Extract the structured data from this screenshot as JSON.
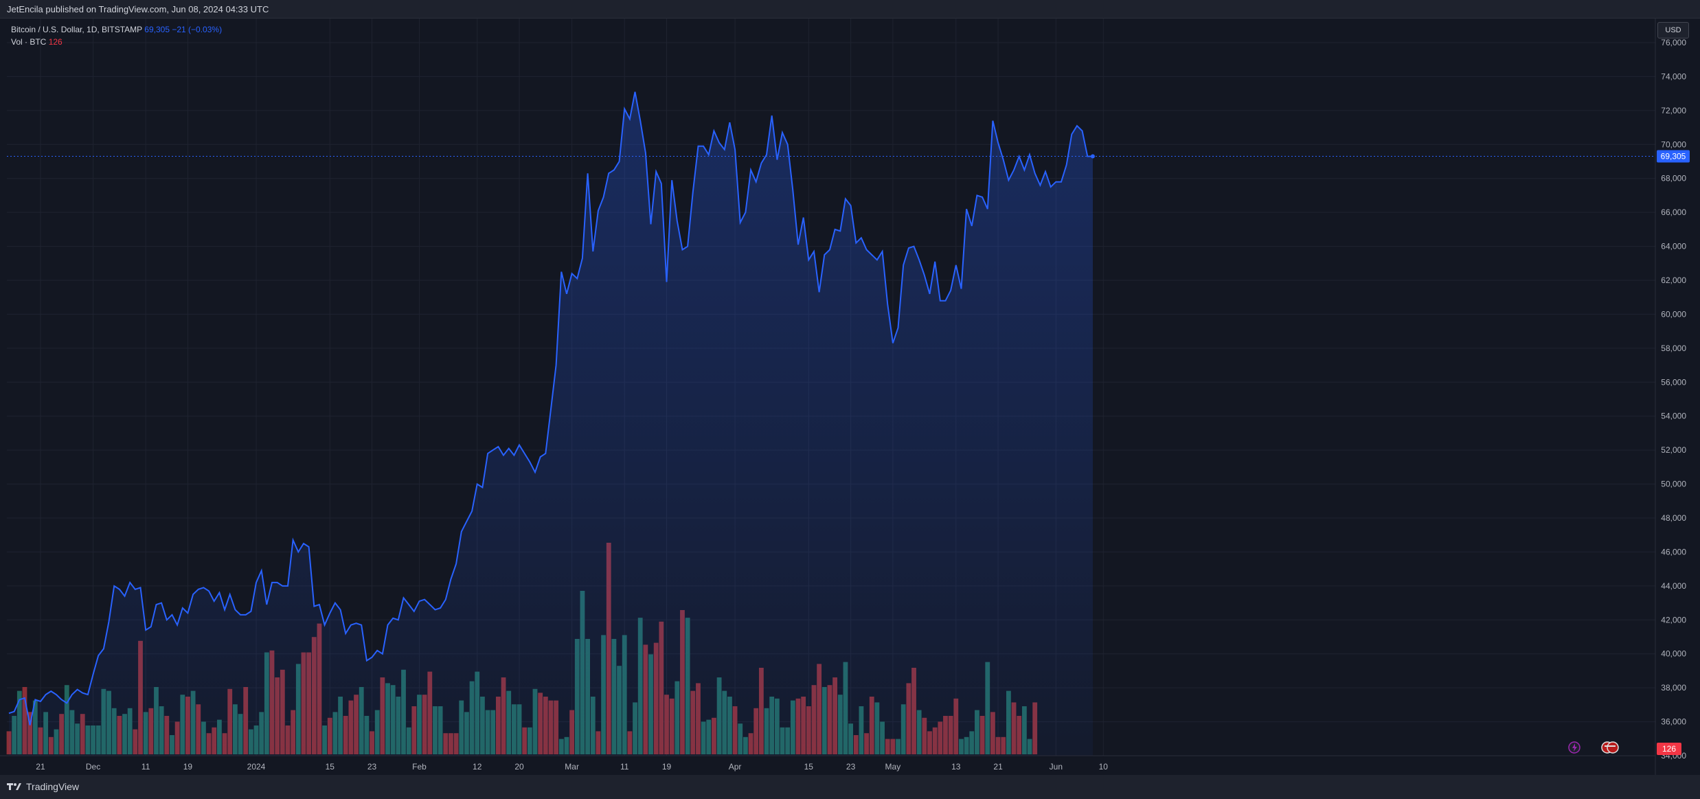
{
  "header": {
    "published": "JetEncila published on TradingView.com, Jun 08, 2024 04:33 UTC"
  },
  "legend": {
    "symbol": "Bitcoin / U.S. Dollar, 1D, BITSTAMP",
    "last": "69,305",
    "change": "−21 (−0.03%)",
    "vol_label": "Vol · BTC",
    "vol_value": "126"
  },
  "scale": {
    "currency": "USD"
  },
  "footer": {
    "brand": "TradingView"
  },
  "colors": {
    "line": "#2962ff",
    "area_top": "#1e2e6e",
    "vol_up": "#22675f",
    "vol_down": "#8c3038",
    "grid": "#1f2330",
    "price_tag": "#2962ff",
    "vol_tag": "#f23645"
  },
  "chart_data": {
    "type": "area",
    "x_start": "2023-11-15",
    "x_end": "2024-06-07",
    "ylim": [
      35000,
      76000
    ],
    "last_price": 69305,
    "last_price_label": "69,305",
    "vol_last_label": "126",
    "ylabel_bottom": "34,000",
    "yticks": [
      {
        "value": 36000,
        "label": "36,000"
      },
      {
        "value": 38000,
        "label": "38,000"
      },
      {
        "value": 40000,
        "label": "40,000"
      },
      {
        "value": 42000,
        "label": "42,000"
      },
      {
        "value": 44000,
        "label": "44,000"
      },
      {
        "value": 46000,
        "label": "46,000"
      },
      {
        "value": 48000,
        "label": "48,000"
      },
      {
        "value": 50000,
        "label": "50,000"
      },
      {
        "value": 52000,
        "label": "52,000"
      },
      {
        "value": 54000,
        "label": "54,000"
      },
      {
        "value": 56000,
        "label": "56,000"
      },
      {
        "value": 58000,
        "label": "58,000"
      },
      {
        "value": 60000,
        "label": "60,000"
      },
      {
        "value": 62000,
        "label": "62,000"
      },
      {
        "value": 64000,
        "label": "64,000"
      },
      {
        "value": 66000,
        "label": "66,000"
      },
      {
        "value": 68000,
        "label": "68,000"
      },
      {
        "value": 70000,
        "label": "70,000"
      },
      {
        "value": 72000,
        "label": "72,000"
      },
      {
        "value": 74000,
        "label": "74,000"
      },
      {
        "value": 76000,
        "label": "76,000"
      }
    ],
    "xticks": [
      {
        "date": "2023-11-21",
        "label": "21"
      },
      {
        "date": "2023-12-01",
        "label": "Dec"
      },
      {
        "date": "2023-12-11",
        "label": "11"
      },
      {
        "date": "2023-12-19",
        "label": "19"
      },
      {
        "date": "2024-01-01",
        "label": "2024"
      },
      {
        "date": "2024-01-15",
        "label": "15"
      },
      {
        "date": "2024-01-23",
        "label": "23"
      },
      {
        "date": "2024-02-01",
        "label": "Feb"
      },
      {
        "date": "2024-02-12",
        "label": "12"
      },
      {
        "date": "2024-02-20",
        "label": "20"
      },
      {
        "date": "2024-03-01",
        "label": "Mar"
      },
      {
        "date": "2024-03-11",
        "label": "11"
      },
      {
        "date": "2024-03-19",
        "label": "19"
      },
      {
        "date": "2024-04-01",
        "label": "Apr"
      },
      {
        "date": "2024-04-15",
        "label": "15"
      },
      {
        "date": "2024-04-23",
        "label": "23"
      },
      {
        "date": "2024-05-01",
        "label": "May"
      },
      {
        "date": "2024-05-13",
        "label": "13"
      },
      {
        "date": "2024-05-21",
        "label": "21"
      },
      {
        "date": "2024-06-01",
        "label": "Jun"
      },
      {
        "date": "2024-06-10",
        "label": "10"
      }
    ],
    "price": [
      36500,
      36600,
      37300,
      37400,
      35800,
      37300,
      37200,
      37600,
      37800,
      37600,
      37300,
      37100,
      37600,
      37900,
      37700,
      37600,
      38800,
      39900,
      40300,
      41900,
      44000,
      43800,
      43400,
      44200,
      43800,
      43900,
      41400,
      41600,
      42900,
      43000,
      42000,
      42300,
      41700,
      42700,
      42400,
      43500,
      43800,
      43900,
      43700,
      43100,
      43600,
      42600,
      43500,
      42600,
      42300,
      42300,
      42500,
      44200,
      44900,
      42900,
      44200,
      44200,
      44000,
      44000,
      46700,
      46000,
      46500,
      46300,
      42800,
      42900,
      41700,
      42400,
      43000,
      42600,
      41200,
      41700,
      41800,
      41700,
      39600,
      39800,
      40200,
      40000,
      41700,
      42100,
      42000,
      43300,
      42900,
      42500,
      43100,
      43200,
      42900,
      42600,
      42700,
      43200,
      44400,
      45300,
      47200,
      47800,
      48400,
      50000,
      49800,
      51800,
      52000,
      52200,
      51700,
      52100,
      51700,
      52300,
      51800,
      51300,
      50700,
      51600,
      51800,
      54400,
      57000,
      62500,
      61200,
      62400,
      62100,
      63300,
      68300,
      63700,
      66100,
      66900,
      68300,
      68500,
      69000,
      72100,
      71500,
      73100,
      71400,
      69500,
      65300,
      68400,
      67700,
      61900,
      67900,
      65500,
      63800,
      64000,
      67200,
      69900,
      69900,
      69400,
      70800,
      70100,
      69700,
      71300,
      69700,
      65400,
      66000,
      68500,
      67800,
      68900,
      69400,
      71700,
      69100,
      70700,
      70000,
      67300,
      64100,
      65700,
      63200,
      63700,
      61300,
      63500,
      63800,
      65000,
      64900,
      66800,
      66400,
      64200,
      64500,
      63800,
      63500,
      63200,
      63700,
      60600,
      58300,
      59200,
      62900,
      63900,
      64000,
      63200,
      62300,
      61200,
      63100,
      60800,
      60800,
      61400,
      62900,
      61500,
      66200,
      65200,
      67000,
      66900,
      66200,
      71400,
      70100,
      69100,
      67900,
      68500,
      69300,
      68500,
      69400,
      68300,
      67600,
      68400,
      67500,
      67800,
      67800,
      68800,
      70600,
      71100,
      70800,
      69300,
      69305
    ],
    "volume": [
      {
        "v": 0.12,
        "up": false
      },
      {
        "v": 0.2,
        "up": true
      },
      {
        "v": 0.33,
        "up": true
      },
      {
        "v": 0.35,
        "up": false
      },
      {
        "v": 0.22,
        "up": false
      },
      {
        "v": 0.28,
        "up": true
      },
      {
        "v": 0.14,
        "up": false
      },
      {
        "v": 0.22,
        "up": true
      },
      {
        "v": 0.09,
        "up": false
      },
      {
        "v": 0.13,
        "up": true
      },
      {
        "v": 0.21,
        "up": false
      },
      {
        "v": 0.36,
        "up": true
      },
      {
        "v": 0.23,
        "up": true
      },
      {
        "v": 0.16,
        "up": true
      },
      {
        "v": 0.21,
        "up": false
      },
      {
        "v": 0.15,
        "up": true
      },
      {
        "v": 0.15,
        "up": true
      },
      {
        "v": 0.15,
        "up": true
      },
      {
        "v": 0.34,
        "up": true
      },
      {
        "v": 0.33,
        "up": true
      },
      {
        "v": 0.24,
        "up": true
      },
      {
        "v": 0.2,
        "up": false
      },
      {
        "v": 0.21,
        "up": true
      },
      {
        "v": 0.24,
        "up": true
      },
      {
        "v": 0.13,
        "up": false
      },
      {
        "v": 0.59,
        "up": false
      },
      {
        "v": 0.22,
        "up": true
      },
      {
        "v": 0.24,
        "up": false
      },
      {
        "v": 0.35,
        "up": true
      },
      {
        "v": 0.25,
        "up": true
      },
      {
        "v": 0.2,
        "up": false
      },
      {
        "v": 0.1,
        "up": true
      },
      {
        "v": 0.17,
        "up": false
      },
      {
        "v": 0.31,
        "up": true
      },
      {
        "v": 0.3,
        "up": false
      },
      {
        "v": 0.33,
        "up": true
      },
      {
        "v": 0.26,
        "up": false
      },
      {
        "v": 0.17,
        "up": true
      },
      {
        "v": 0.11,
        "up": false
      },
      {
        "v": 0.14,
        "up": false
      },
      {
        "v": 0.18,
        "up": true
      },
      {
        "v": 0.11,
        "up": false
      },
      {
        "v": 0.34,
        "up": false
      },
      {
        "v": 0.26,
        "up": true
      },
      {
        "v": 0.21,
        "up": true
      },
      {
        "v": 0.35,
        "up": false
      },
      {
        "v": 0.13,
        "up": true
      },
      {
        "v": 0.15,
        "up": true
      },
      {
        "v": 0.22,
        "up": true
      },
      {
        "v": 0.53,
        "up": true
      },
      {
        "v": 0.54,
        "up": false
      },
      {
        "v": 0.4,
        "up": false
      },
      {
        "v": 0.44,
        "up": false
      },
      {
        "v": 0.15,
        "up": false
      },
      {
        "v": 0.23,
        "up": false
      },
      {
        "v": 0.47,
        "up": true
      },
      {
        "v": 0.53,
        "up": false
      },
      {
        "v": 0.53,
        "up": false
      },
      {
        "v": 0.61,
        "up": false
      },
      {
        "v": 0.68,
        "up": false
      },
      {
        "v": 0.15,
        "up": true
      },
      {
        "v": 0.19,
        "up": false
      },
      {
        "v": 0.22,
        "up": true
      },
      {
        "v": 0.3,
        "up": true
      },
      {
        "v": 0.2,
        "up": false
      },
      {
        "v": 0.28,
        "up": false
      },
      {
        "v": 0.31,
        "up": false
      },
      {
        "v": 0.35,
        "up": true
      },
      {
        "v": 0.2,
        "up": true
      },
      {
        "v": 0.12,
        "up": false
      },
      {
        "v": 0.23,
        "up": true
      },
      {
        "v": 0.4,
        "up": false
      },
      {
        "v": 0.37,
        "up": true
      },
      {
        "v": 0.36,
        "up": true
      },
      {
        "v": 0.3,
        "up": true
      },
      {
        "v": 0.44,
        "up": true
      },
      {
        "v": 0.14,
        "up": true
      },
      {
        "v": 0.25,
        "up": false
      },
      {
        "v": 0.31,
        "up": true
      },
      {
        "v": 0.31,
        "up": false
      },
      {
        "v": 0.43,
        "up": false
      },
      {
        "v": 0.25,
        "up": true
      },
      {
        "v": 0.25,
        "up": true
      },
      {
        "v": 0.11,
        "up": false
      },
      {
        "v": 0.11,
        "up": false
      },
      {
        "v": 0.11,
        "up": false
      },
      {
        "v": 0.28,
        "up": true
      },
      {
        "v": 0.22,
        "up": true
      },
      {
        "v": 0.38,
        "up": true
      },
      {
        "v": 0.43,
        "up": true
      },
      {
        "v": 0.3,
        "up": true
      },
      {
        "v": 0.23,
        "up": true
      },
      {
        "v": 0.23,
        "up": true
      },
      {
        "v": 0.3,
        "up": false
      },
      {
        "v": 0.4,
        "up": false
      },
      {
        "v": 0.33,
        "up": true
      },
      {
        "v": 0.26,
        "up": true
      },
      {
        "v": 0.26,
        "up": true
      },
      {
        "v": 0.14,
        "up": false
      },
      {
        "v": 0.14,
        "up": true
      },
      {
        "v": 0.34,
        "up": true
      },
      {
        "v": 0.32,
        "up": false
      },
      {
        "v": 0.3,
        "up": false
      },
      {
        "v": 0.28,
        "up": false
      },
      {
        "v": 0.28,
        "up": false
      },
      {
        "v": 0.08,
        "up": true
      },
      {
        "v": 0.09,
        "up": true
      },
      {
        "v": 0.23,
        "up": false
      },
      {
        "v": 0.6,
        "up": true
      },
      {
        "v": 0.85,
        "up": true
      },
      {
        "v": 0.6,
        "up": true
      },
      {
        "v": 0.3,
        "up": true
      },
      {
        "v": 0.12,
        "up": false
      },
      {
        "v": 0.62,
        "up": true
      },
      {
        "v": 1.1,
        "up": false
      },
      {
        "v": 0.6,
        "up": true
      },
      {
        "v": 0.46,
        "up": true
      },
      {
        "v": 0.62,
        "up": true
      },
      {
        "v": 0.12,
        "up": false
      },
      {
        "v": 0.27,
        "up": true
      },
      {
        "v": 0.71,
        "up": true
      },
      {
        "v": 0.57,
        "up": false
      },
      {
        "v": 0.52,
        "up": true
      },
      {
        "v": 0.58,
        "up": false
      },
      {
        "v": 0.69,
        "up": false
      },
      {
        "v": 0.31,
        "up": false
      },
      {
        "v": 0.29,
        "up": false
      },
      {
        "v": 0.38,
        "up": true
      },
      {
        "v": 0.75,
        "up": false
      },
      {
        "v": 0.71,
        "up": true
      },
      {
        "v": 0.33,
        "up": false
      },
      {
        "v": 0.37,
        "up": false
      },
      {
        "v": 0.17,
        "up": true
      },
      {
        "v": 0.18,
        "up": true
      },
      {
        "v": 0.19,
        "up": false
      },
      {
        "v": 0.4,
        "up": true
      },
      {
        "v": 0.33,
        "up": true
      },
      {
        "v": 0.3,
        "up": true
      },
      {
        "v": 0.25,
        "up": false
      },
      {
        "v": 0.16,
        "up": true
      },
      {
        "v": 0.09,
        "up": true
      },
      {
        "v": 0.11,
        "up": false
      },
      {
        "v": 0.24,
        "up": false
      },
      {
        "v": 0.45,
        "up": false
      },
      {
        "v": 0.24,
        "up": true
      },
      {
        "v": 0.3,
        "up": true
      },
      {
        "v": 0.29,
        "up": true
      },
      {
        "v": 0.14,
        "up": true
      },
      {
        "v": 0.14,
        "up": true
      },
      {
        "v": 0.28,
        "up": true
      },
      {
        "v": 0.29,
        "up": false
      },
      {
        "v": 0.3,
        "up": false
      },
      {
        "v": 0.25,
        "up": false
      },
      {
        "v": 0.36,
        "up": false
      },
      {
        "v": 0.47,
        "up": false
      },
      {
        "v": 0.35,
        "up": true
      },
      {
        "v": 0.36,
        "up": false
      },
      {
        "v": 0.4,
        "up": false
      },
      {
        "v": 0.31,
        "up": true
      },
      {
        "v": 0.48,
        "up": true
      },
      {
        "v": 0.16,
        "up": true
      },
      {
        "v": 0.1,
        "up": false
      },
      {
        "v": 0.25,
        "up": true
      },
      {
        "v": 0.11,
        "up": false
      },
      {
        "v": 0.3,
        "up": false
      },
      {
        "v": 0.27,
        "up": true
      },
      {
        "v": 0.17,
        "up": true
      },
      {
        "v": 0.08,
        "up": false
      },
      {
        "v": 0.08,
        "up": false
      },
      {
        "v": 0.08,
        "up": true
      },
      {
        "v": 0.26,
        "up": true
      },
      {
        "v": 0.37,
        "up": false
      },
      {
        "v": 0.45,
        "up": false
      },
      {
        "v": 0.23,
        "up": true
      },
      {
        "v": 0.19,
        "up": false
      },
      {
        "v": 0.12,
        "up": false
      },
      {
        "v": 0.14,
        "up": false
      },
      {
        "v": 0.17,
        "up": false
      },
      {
        "v": 0.2,
        "up": false
      },
      {
        "v": 0.2,
        "up": false
      },
      {
        "v": 0.29,
        "up": false
      },
      {
        "v": 0.08,
        "up": true
      },
      {
        "v": 0.09,
        "up": true
      },
      {
        "v": 0.12,
        "up": true
      },
      {
        "v": 0.23,
        "up": true
      },
      {
        "v": 0.2,
        "up": false
      },
      {
        "v": 0.48,
        "up": true
      },
      {
        "v": 0.22,
        "up": false
      },
      {
        "v": 0.09,
        "up": false
      },
      {
        "v": 0.09,
        "up": false
      },
      {
        "v": 0.33,
        "up": true
      },
      {
        "v": 0.27,
        "up": false
      },
      {
        "v": 0.2,
        "up": false
      },
      {
        "v": 0.25,
        "up": true
      },
      {
        "v": 0.08,
        "up": true
      },
      {
        "v": 0.27,
        "up": false
      }
    ]
  }
}
